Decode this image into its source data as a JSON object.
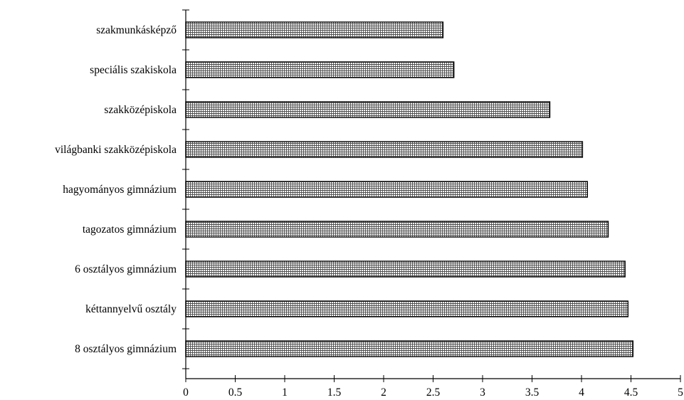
{
  "chart_data": {
    "type": "bar",
    "orientation": "horizontal",
    "categories": [
      "szakmunkásképző",
      "speciális szakiskola",
      "szakközépiskola",
      "világbanki szakközépiskola",
      "hagyományos gimnázium",
      "tagozatos gimnázium",
      "6 osztályos gimnázium",
      "kéttannyelvű osztály",
      "8 osztályos gimnázium"
    ],
    "values": [
      2.6,
      2.71,
      3.68,
      4.01,
      4.06,
      4.27,
      4.44,
      4.47,
      4.52
    ],
    "xlim": [
      0,
      5
    ],
    "x_ticks": [
      "0",
      "0.5",
      "1",
      "1.5",
      "2",
      "2.5",
      "3",
      "3.5",
      "4",
      "4.5",
      "5"
    ],
    "grid": false,
    "bar_fill": "crosshatch",
    "colors": {
      "bar_stroke": "#000000",
      "hatch": "#555555",
      "bar_bg": "#ffffff"
    }
  }
}
